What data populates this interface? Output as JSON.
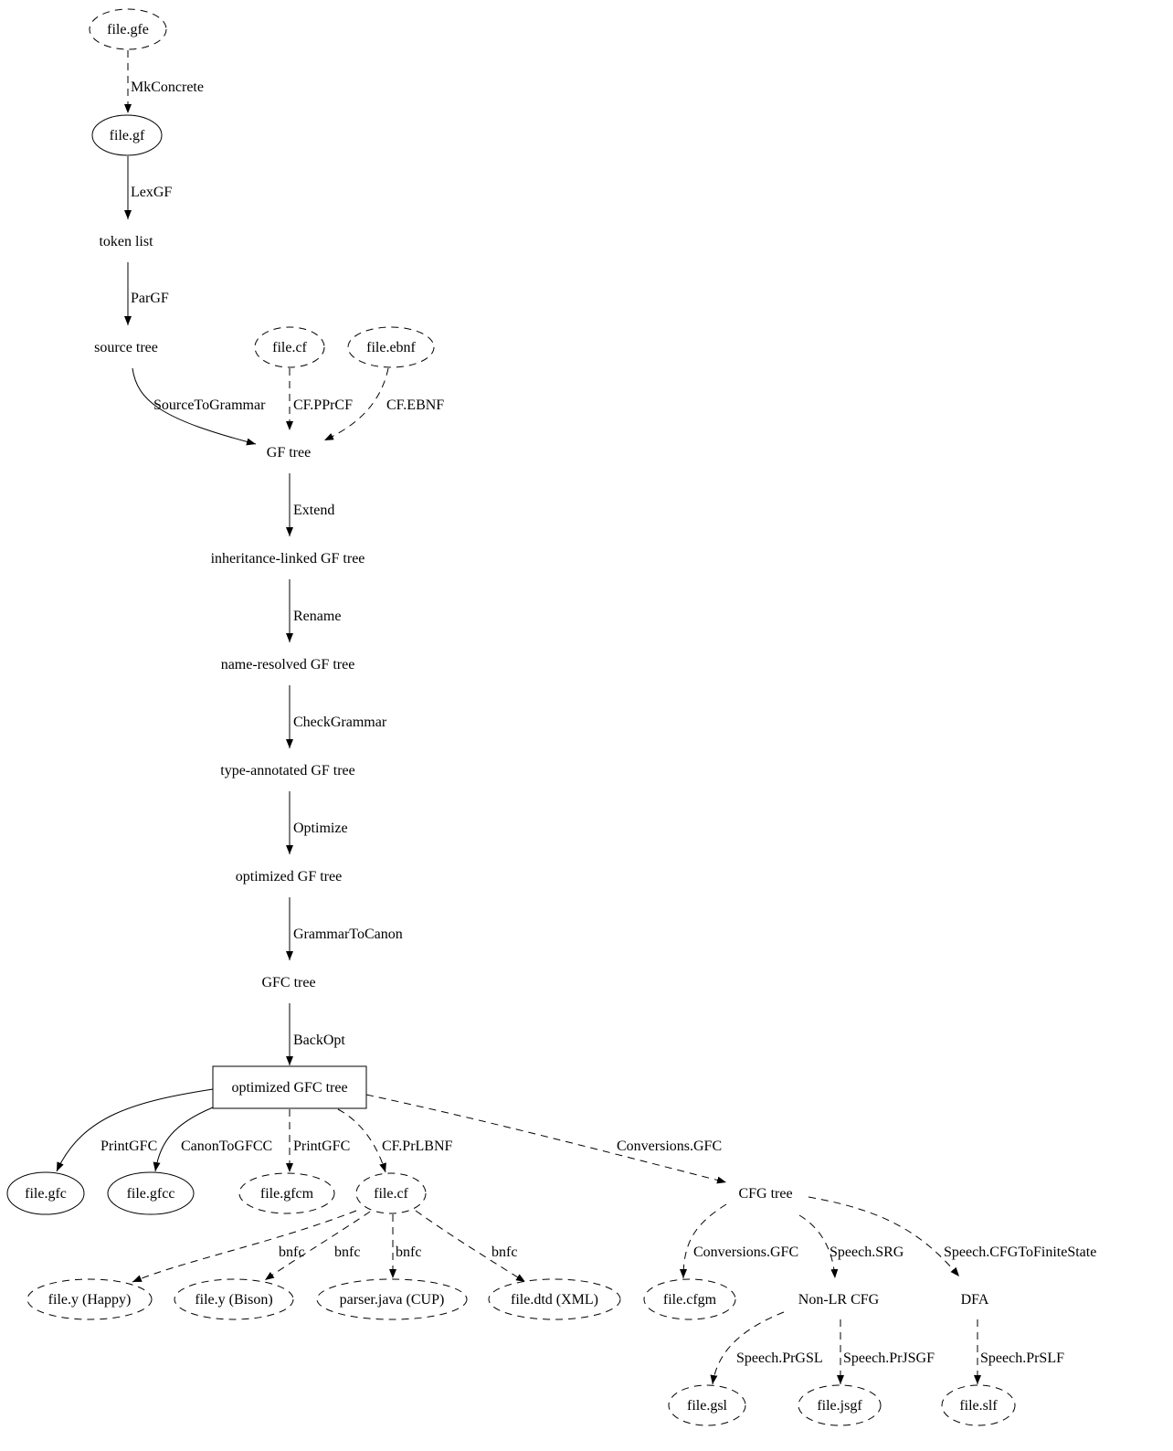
{
  "nodes": [
    {
      "id": "gfe",
      "label": "file.gfe",
      "shape": "ellipse",
      "style": "dashed"
    },
    {
      "id": "gf",
      "label": "file.gf",
      "shape": "ellipse",
      "style": "solid"
    },
    {
      "id": "tokens",
      "label": "token list",
      "shape": "plaintext",
      "style": "solid"
    },
    {
      "id": "source",
      "label": "source tree",
      "shape": "plaintext",
      "style": "solid"
    },
    {
      "id": "cf1",
      "label": "file.cf",
      "shape": "ellipse",
      "style": "dashed"
    },
    {
      "id": "ebnf",
      "label": "file.ebnf",
      "shape": "ellipse",
      "style": "dashed"
    },
    {
      "id": "gftree",
      "label": "GF tree",
      "shape": "plaintext",
      "style": "solid"
    },
    {
      "id": "inh",
      "label": "inheritance-linked GF tree",
      "shape": "plaintext",
      "style": "solid"
    },
    {
      "id": "nameres",
      "label": "name-resolved GF tree",
      "shape": "plaintext",
      "style": "solid"
    },
    {
      "id": "typeann",
      "label": "type-annotated GF tree",
      "shape": "plaintext",
      "style": "solid"
    },
    {
      "id": "opt",
      "label": "optimized GF tree",
      "shape": "plaintext",
      "style": "solid"
    },
    {
      "id": "gfc",
      "label": "GFC tree",
      "shape": "plaintext",
      "style": "solid"
    },
    {
      "id": "optgfc",
      "label": "optimized GFC tree",
      "shape": "box",
      "style": "solid"
    },
    {
      "id": "gfcfile",
      "label": "file.gfc",
      "shape": "ellipse",
      "style": "solid"
    },
    {
      "id": "gfcc",
      "label": "file.gfcc",
      "shape": "ellipse",
      "style": "solid"
    },
    {
      "id": "gfcm",
      "label": "file.gfcm",
      "shape": "ellipse",
      "style": "dashed"
    },
    {
      "id": "cf2",
      "label": "file.cf",
      "shape": "ellipse",
      "style": "dashed"
    },
    {
      "id": "cfgtree",
      "label": "CFG tree",
      "shape": "plaintext",
      "style": "solid"
    },
    {
      "id": "happy",
      "label": "file.y (Happy)",
      "shape": "ellipse",
      "style": "dashed"
    },
    {
      "id": "bison",
      "label": "file.y (Bison)",
      "shape": "ellipse",
      "style": "dashed"
    },
    {
      "id": "cup",
      "label": "parser.java (CUP)",
      "shape": "ellipse",
      "style": "dashed"
    },
    {
      "id": "dtd",
      "label": "file.dtd (XML)",
      "shape": "ellipse",
      "style": "dashed"
    },
    {
      "id": "cfgm",
      "label": "file.cfgm",
      "shape": "ellipse",
      "style": "dashed"
    },
    {
      "id": "nonlr",
      "label": "Non-LR CFG",
      "shape": "plaintext",
      "style": "solid"
    },
    {
      "id": "dfa",
      "label": "DFA",
      "shape": "plaintext",
      "style": "solid"
    },
    {
      "id": "gsl",
      "label": "file.gsl",
      "shape": "ellipse",
      "style": "dashed"
    },
    {
      "id": "jsgf",
      "label": "file.jsgf",
      "shape": "ellipse",
      "style": "dashed"
    },
    {
      "id": "slf",
      "label": "file.slf",
      "shape": "ellipse",
      "style": "dashed"
    }
  ],
  "edges": [
    {
      "from": "gfe",
      "to": "gf",
      "label": "MkConcrete",
      "style": "dashed"
    },
    {
      "from": "gf",
      "to": "tokens",
      "label": "LexGF",
      "style": "solid"
    },
    {
      "from": "tokens",
      "to": "source",
      "label": "ParGF",
      "style": "solid"
    },
    {
      "from": "source",
      "to": "gftree",
      "label": "SourceToGrammar",
      "style": "solid"
    },
    {
      "from": "cf1",
      "to": "gftree",
      "label": "CF.PPrCF",
      "style": "dashed"
    },
    {
      "from": "ebnf",
      "to": "gftree",
      "label": "CF.EBNF",
      "style": "dashed"
    },
    {
      "from": "gftree",
      "to": "inh",
      "label": "Extend",
      "style": "solid"
    },
    {
      "from": "inh",
      "to": "nameres",
      "label": "Rename",
      "style": "solid"
    },
    {
      "from": "nameres",
      "to": "typeann",
      "label": "CheckGrammar",
      "style": "solid"
    },
    {
      "from": "typeann",
      "to": "opt",
      "label": "Optimize",
      "style": "solid"
    },
    {
      "from": "opt",
      "to": "gfc",
      "label": "GrammarToCanon",
      "style": "solid"
    },
    {
      "from": "gfc",
      "to": "optgfc",
      "label": "BackOpt",
      "style": "solid"
    },
    {
      "from": "optgfc",
      "to": "gfcfile",
      "label": "PrintGFC",
      "style": "solid"
    },
    {
      "from": "optgfc",
      "to": "gfcc",
      "label": "CanonToGFCC",
      "style": "solid"
    },
    {
      "from": "optgfc",
      "to": "gfcm",
      "label": "PrintGFC",
      "style": "dashed"
    },
    {
      "from": "optgfc",
      "to": "cf2",
      "label": "CF.PrLBNF",
      "style": "dashed"
    },
    {
      "from": "optgfc",
      "to": "cfgtree",
      "label": "Conversions.GFC",
      "style": "dashed"
    },
    {
      "from": "cf2",
      "to": "happy",
      "label": "bnfc",
      "style": "dashed"
    },
    {
      "from": "cf2",
      "to": "bison",
      "label": "bnfc",
      "style": "dashed"
    },
    {
      "from": "cf2",
      "to": "cup",
      "label": "bnfc",
      "style": "dashed"
    },
    {
      "from": "cf2",
      "to": "dtd",
      "label": "bnfc",
      "style": "dashed"
    },
    {
      "from": "cfgtree",
      "to": "cfgm",
      "label": "Conversions.GFC",
      "style": "dashed"
    },
    {
      "from": "cfgtree",
      "to": "nonlr",
      "label": "Speech.SRG",
      "style": "dashed"
    },
    {
      "from": "cfgtree",
      "to": "dfa",
      "label": "Speech.CFGToFiniteState",
      "style": "dashed"
    },
    {
      "from": "nonlr",
      "to": "gsl",
      "label": "Speech.PrGSL",
      "style": "dashed"
    },
    {
      "from": "nonlr",
      "to": "jsgf",
      "label": "Speech.PrJSGF",
      "style": "dashed"
    },
    {
      "from": "dfa",
      "to": "slf",
      "label": "Speech.PrSLF",
      "style": "dashed"
    }
  ]
}
